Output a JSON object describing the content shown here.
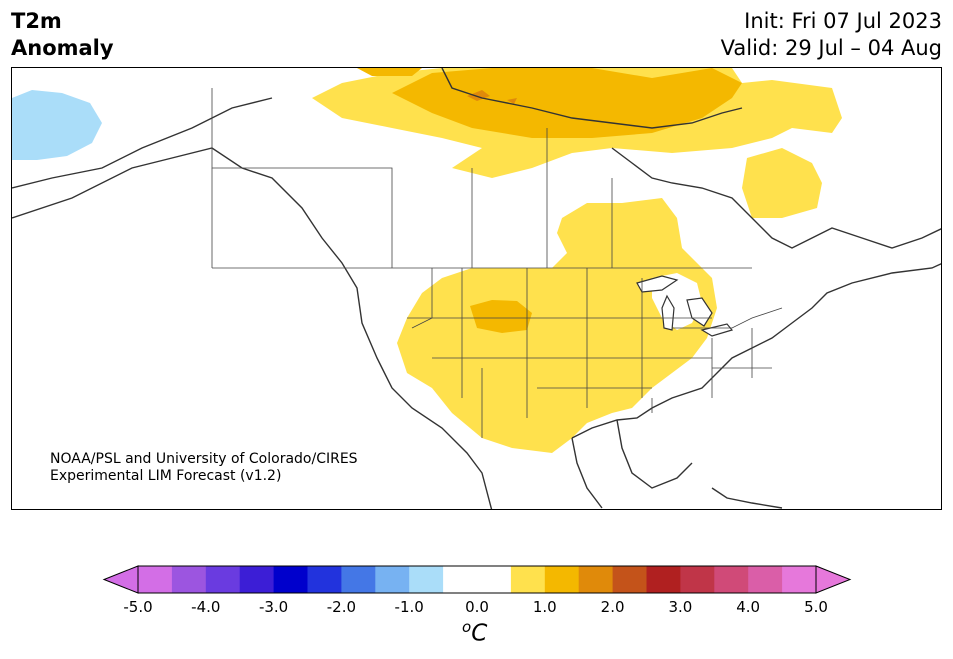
{
  "header": {
    "title_line1": "T2m",
    "title_line2": "Anomaly",
    "init": "Init: Fri 07 Jul 2023",
    "valid": "Valid: 29 Jul – 04 Aug"
  },
  "map": {
    "credit_line1": "NOAA/PSL and University of Colorado/CIRES",
    "credit_line2": "Experimental LIM Forecast (v1.2)"
  },
  "colorbar": {
    "unit_base": "C",
    "unit_sup": "o",
    "tick_labels": [
      "-5.0",
      "-4.0",
      "-3.0",
      "-2.0",
      "-1.0",
      "0.0",
      "1.0",
      "2.0",
      "3.0",
      "4.0",
      "5.0"
    ],
    "colors": [
      "#d36ee6",
      "#9c55e0",
      "#6a3be0",
      "#3c1ed6",
      "#0000cc",
      "#2233dd",
      "#4477e6",
      "#77b2f2",
      "#aaddf9",
      "#ffffff",
      "#ffffff",
      "#ffe14d",
      "#f4b800",
      "#e08a0a",
      "#c4531a",
      "#b02020",
      "#c03548",
      "#d04a78",
      "#da5ea8",
      "#e678db"
    ],
    "neg_extend_color": "#d36ee6",
    "pos_extend_color": "#e678db"
  }
}
